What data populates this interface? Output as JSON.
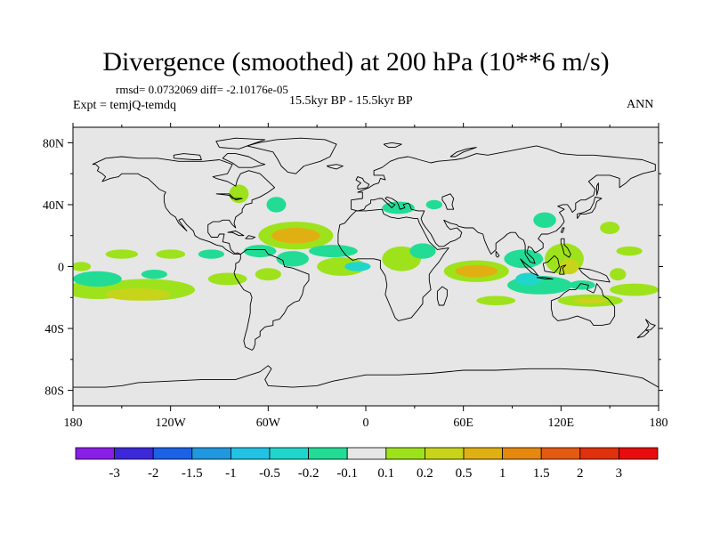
{
  "header": {
    "title": "Divergence (smoothed) at 200 hPa (10**6 m/s)",
    "stats": "rmsd= 0.0732069 diff= -2.10176e-05",
    "experiment": "Expt = temjQ-temdq",
    "period": "15.5kyr BP - 15.5kyr BP",
    "season": "ANN"
  },
  "chart_data": {
    "type": "heatmap",
    "title": "Divergence (smoothed) at 200 hPa (10**6 m/s)",
    "xlabel": "",
    "ylabel": "",
    "x_ticks": [
      "180",
      "120W",
      "60W",
      "0",
      "60E",
      "120E",
      "180"
    ],
    "y_ticks": [
      "80N",
      "40N",
      "0",
      "40S",
      "80S"
    ],
    "xlim": [
      -180,
      180
    ],
    "ylim": [
      -90,
      90
    ],
    "background_color": "#e6e6e6",
    "colorbar": {
      "labels": [
        "-3",
        "-2",
        "-1.5",
        "-1",
        "-0.5",
        "-0.2",
        "-0.1",
        "0.1",
        "0.2",
        "0.5",
        "1",
        "1.5",
        "2",
        "3"
      ],
      "colors": [
        "#8a1ee8",
        "#3c28d8",
        "#1c62e6",
        "#2098e0",
        "#22c2e4",
        "#20d6cc",
        "#22dc96",
        "#e6e6e6",
        "#9ee21c",
        "#c8d41a",
        "#e0b012",
        "#e6880e",
        "#e45a10",
        "#e0300c",
        "#e80c0c"
      ]
    },
    "anomalies": [
      {
        "lon": -165,
        "lat": -15,
        "rlon": 20,
        "rlat": 6,
        "value": 0.15
      },
      {
        "lon": -135,
        "lat": -15,
        "rlon": 30,
        "rlat": 7,
        "value": 0.15
      },
      {
        "lon": -140,
        "lat": -18,
        "rlon": 20,
        "rlat": 4,
        "value": 0.2
      },
      {
        "lon": -150,
        "lat": 8,
        "rlon": 10,
        "rlat": 3,
        "value": 0.15
      },
      {
        "lon": -120,
        "lat": 8,
        "rlon": 9,
        "rlat": 3,
        "value": 0.15
      },
      {
        "lon": -175,
        "lat": 0,
        "rlon": 6,
        "rlat": 3,
        "value": 0.15
      },
      {
        "lon": -165,
        "lat": -8,
        "rlon": 15,
        "rlat": 5,
        "value": -0.15
      },
      {
        "lon": -130,
        "lat": -5,
        "rlon": 8,
        "rlat": 3,
        "value": -0.15
      },
      {
        "lon": -85,
        "lat": -8,
        "rlon": 12,
        "rlat": 4,
        "value": 0.15
      },
      {
        "lon": -95,
        "lat": 8,
        "rlon": 8,
        "rlat": 3,
        "value": -0.15
      },
      {
        "lon": -65,
        "lat": 10,
        "rlon": 10,
        "rlat": 4,
        "value": -0.15
      },
      {
        "lon": -60,
        "lat": -5,
        "rlon": 8,
        "rlat": 4,
        "value": 0.15
      },
      {
        "lon": -78,
        "lat": 47,
        "rlon": 6,
        "rlat": 6,
        "value": 0.15
      },
      {
        "lon": -55,
        "lat": 40,
        "rlon": 6,
        "rlat": 5,
        "value": -0.15
      },
      {
        "lon": -43,
        "lat": 20,
        "rlon": 23,
        "rlat": 9,
        "value": 0.15
      },
      {
        "lon": -43,
        "lat": 20,
        "rlon": 15,
        "rlat": 5,
        "value": 0.6
      },
      {
        "lon": -45,
        "lat": 5,
        "rlon": 10,
        "rlat": 5,
        "value": -0.15
      },
      {
        "lon": -20,
        "lat": 10,
        "rlon": 15,
        "rlat": 4,
        "value": -0.15
      },
      {
        "lon": -15,
        "lat": 0,
        "rlon": 15,
        "rlat": 6,
        "value": 0.15
      },
      {
        "lon": -5,
        "lat": 0,
        "rlon": 8,
        "rlat": 3,
        "value": -0.25
      },
      {
        "lon": 22,
        "lat": 5,
        "rlon": 12,
        "rlat": 8,
        "value": 0.15
      },
      {
        "lon": 35,
        "lat": 10,
        "rlon": 8,
        "rlat": 5,
        "value": -0.15
      },
      {
        "lon": 20,
        "lat": 38,
        "rlon": 10,
        "rlat": 4,
        "value": -0.15
      },
      {
        "lon": 42,
        "lat": 40,
        "rlon": 5,
        "rlat": 3,
        "value": -0.15
      },
      {
        "lon": 68,
        "lat": -3,
        "rlon": 20,
        "rlat": 7,
        "value": 0.15
      },
      {
        "lon": 68,
        "lat": -3,
        "rlon": 13,
        "rlat": 4,
        "value": 0.6
      },
      {
        "lon": 97,
        "lat": 5,
        "rlon": 12,
        "rlat": 6,
        "value": -0.15
      },
      {
        "lon": 110,
        "lat": 30,
        "rlon": 7,
        "rlat": 5,
        "value": -0.15
      },
      {
        "lon": 122,
        "lat": 5,
        "rlon": 12,
        "rlat": 10,
        "value": 0.15
      },
      {
        "lon": 125,
        "lat": 0,
        "rlon": 6,
        "rlat": 5,
        "value": 0.35
      },
      {
        "lon": 107,
        "lat": -12,
        "rlon": 20,
        "rlat": 6,
        "value": -0.15
      },
      {
        "lon": 100,
        "lat": -8,
        "rlon": 8,
        "rlat": 4,
        "value": -0.4
      },
      {
        "lon": 80,
        "lat": -22,
        "rlon": 12,
        "rlat": 3,
        "value": 0.15
      },
      {
        "lon": 138,
        "lat": -22,
        "rlon": 20,
        "rlat": 4,
        "value": 0.15
      },
      {
        "lon": 138,
        "lat": -22,
        "rlon": 10,
        "rlat": 2,
        "value": 0.3
      },
      {
        "lon": 133,
        "lat": -12,
        "rlon": 8,
        "rlat": 3,
        "value": -0.15
      },
      {
        "lon": 155,
        "lat": -5,
        "rlon": 5,
        "rlat": 4,
        "value": 0.15
      },
      {
        "lon": 165,
        "lat": -15,
        "rlon": 15,
        "rlat": 4,
        "value": 0.15
      },
      {
        "lon": 150,
        "lat": 25,
        "rlon": 6,
        "rlat": 4,
        "value": 0.15
      },
      {
        "lon": 162,
        "lat": 10,
        "rlon": 8,
        "rlat": 3,
        "value": 0.15
      }
    ]
  }
}
